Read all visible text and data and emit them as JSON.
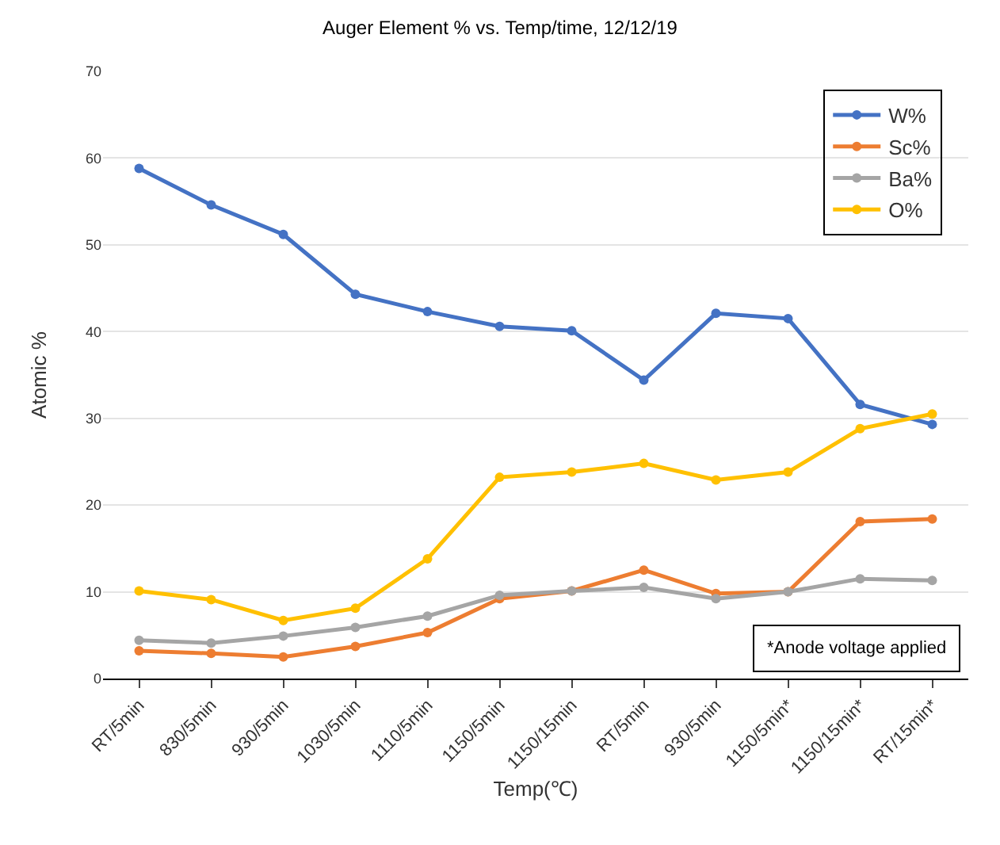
{
  "chart_data": {
    "type": "line",
    "title": "Auger Element % vs. Temp/time, 12/12/19",
    "xlabel": "Temp(℃)",
    "ylabel": "Atomic %",
    "categories": [
      "RT/5min",
      "830/5min",
      "930/5min",
      "1030/5min",
      "1110/5min",
      "1150/5min",
      "1150/15min",
      "RT/5min",
      "930/5min",
      "1150/5min*",
      "1150/15min*",
      "RT/15min*"
    ],
    "series": [
      {
        "name": "W%",
        "color": "#4472c4",
        "values": [
          58.8,
          54.6,
          51.2,
          44.3,
          42.3,
          40.6,
          40.1,
          34.4,
          42.1,
          41.5,
          31.6,
          29.3
        ]
      },
      {
        "name": "Sc%",
        "color": "#ed7d31",
        "values": [
          3.2,
          2.9,
          2.5,
          3.7,
          5.3,
          9.2,
          10.1,
          12.5,
          9.8,
          10,
          18.1,
          18.4
        ]
      },
      {
        "name": "Ba%",
        "color": "#a5a5a5",
        "values": [
          4.4,
          4.1,
          4.9,
          5.9,
          7.2,
          9.6,
          10.1,
          10.5,
          9.2,
          10,
          11.5,
          11.3
        ]
      },
      {
        "name": "O%",
        "color": "#ffc000",
        "values": [
          10.1,
          9.1,
          6.7,
          8.1,
          13.8,
          23.2,
          23.8,
          24.8,
          22.9,
          23.8,
          28.8,
          30.5
        ]
      }
    ],
    "ylim": [
      0,
      70
    ],
    "yticks": [
      0,
      10,
      20,
      30,
      40,
      50,
      60,
      70
    ],
    "grid": "y",
    "legend": "top right",
    "marker": "circle",
    "line_style": "solid",
    "annotations": [
      "*Anode voltage applied"
    ]
  }
}
